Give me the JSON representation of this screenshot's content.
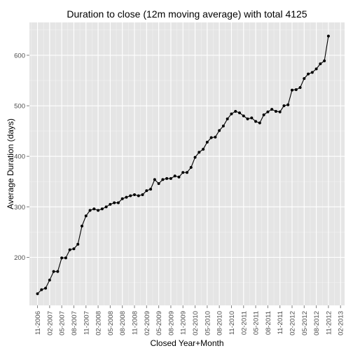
{
  "chart_data": {
    "type": "line",
    "title": "Duration to close (12m moving average) with total 4125",
    "xlabel": "Closed Year+Month",
    "ylabel": "Average Duration (days)",
    "x_tick_labels": [
      "11-2006",
      "02-2007",
      "05-2007",
      "08-2007",
      "11-2007",
      "02-2008",
      "05-2008",
      "08-2008",
      "11-2008",
      "02-2009",
      "05-2009",
      "08-2009",
      "11-2009",
      "02-2010",
      "05-2010",
      "08-2010",
      "11-2010",
      "02-2011",
      "05-2011",
      "08-2011",
      "11-2011",
      "02-2012",
      "05-2012",
      "08-2012",
      "11-2012",
      "02-2013"
    ],
    "y_ticks": [
      200,
      300,
      400,
      500,
      600
    ],
    "xlim": [
      "09-2006",
      "03-2013"
    ],
    "ylim": [
      105,
      665
    ],
    "grid": true,
    "legend": "none",
    "colors": {
      "panel_background": "#e5e5e5",
      "grid_major": "#ffffff",
      "grid_minor": "#f2f2f2",
      "line": "#000000",
      "points": "#000000"
    },
    "series": [
      {
        "x": [
          "11-2006",
          "12-2006",
          "01-2007",
          "02-2007",
          "03-2007",
          "04-2007",
          "05-2007",
          "06-2007",
          "07-2007",
          "08-2007",
          "09-2007",
          "10-2007",
          "11-2007",
          "12-2007",
          "01-2008",
          "02-2008",
          "03-2008",
          "04-2008",
          "05-2008",
          "06-2008",
          "07-2008",
          "08-2008",
          "09-2008",
          "10-2008",
          "11-2008",
          "12-2008",
          "01-2009",
          "02-2009",
          "03-2009",
          "04-2009",
          "05-2009",
          "06-2009",
          "07-2009",
          "08-2009",
          "09-2009",
          "10-2009",
          "11-2009",
          "12-2009",
          "01-2010",
          "02-2010",
          "03-2010",
          "04-2010",
          "05-2010",
          "06-2010",
          "07-2010",
          "08-2010",
          "09-2010",
          "10-2010",
          "11-2010",
          "12-2010",
          "01-2011",
          "02-2011",
          "03-2011",
          "04-2011",
          "05-2011",
          "06-2011",
          "07-2011",
          "08-2011",
          "09-2011",
          "10-2011",
          "11-2011",
          "12-2011",
          "01-2012",
          "02-2012",
          "03-2012",
          "04-2012",
          "05-2012",
          "06-2012",
          "07-2012",
          "08-2012",
          "09-2012",
          "10-2012",
          "11-2012"
        ],
        "values": [
          128,
          136,
          139,
          155,
          172,
          172,
          199,
          199,
          215,
          217,
          226,
          262,
          282,
          293,
          296,
          293,
          296,
          300,
          305,
          308,
          308,
          316,
          319,
          322,
          324,
          322,
          324,
          332,
          335,
          354,
          346,
          354,
          356,
          356,
          361,
          359,
          368,
          368,
          378,
          398,
          408,
          414,
          428,
          437,
          438,
          451,
          460,
          474,
          484,
          489,
          486,
          480,
          474,
          476,
          469,
          466,
          482,
          488,
          493,
          489,
          488,
          500,
          502,
          531,
          532,
          536,
          554,
          563,
          566,
          573,
          583,
          589,
          638
        ]
      }
    ]
  }
}
